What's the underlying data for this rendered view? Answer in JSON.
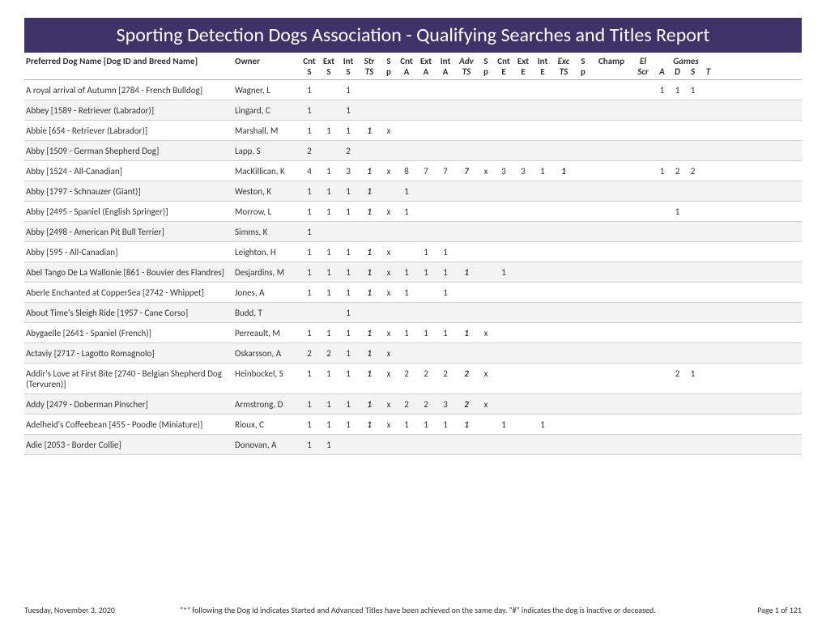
{
  "title": "Sporting Detection Dogs Association - Qualifying Searches and Titles Report",
  "header": {
    "dog": "Preferred Dog Name [Dog ID and Breed Name]",
    "owner": "Owner",
    "cols_top": [
      "Cnt",
      "Ext",
      "Int",
      "Str",
      "S",
      "Cnt",
      "Ext",
      "Int",
      "Adv",
      "S",
      "Cnt",
      "Ext",
      "Int",
      "Exc",
      "S",
      "Champ",
      "El"
    ],
    "cols_bot": [
      "S",
      "S",
      "S",
      "TS",
      "p",
      "A",
      "A",
      "A",
      "TS",
      "p",
      "E",
      "E",
      "E",
      "TS",
      "p",
      "",
      "Scr"
    ],
    "games_label": "Games",
    "games_sub": [
      "A",
      "D",
      "S",
      "T"
    ]
  },
  "rows": [
    {
      "dog": "A royal arrival of Autumn [2784 - French Bulldog]",
      "owner": "Wagner, L",
      "v": [
        "1",
        "",
        "1",
        "",
        "",
        "",
        "",
        "",
        "",
        "",
        "",
        "",
        "",
        "",
        "",
        "",
        "",
        "1",
        "1",
        "1",
        ""
      ]
    },
    {
      "dog": "Abbey [1589 - Retriever (Labrador)]",
      "owner": "Lingard, C",
      "v": [
        "1",
        "",
        "1",
        "",
        "",
        "",
        "",
        "",
        "",
        "",
        "",
        "",
        "",
        "",
        "",
        "",
        "",
        "",
        "",
        "",
        ""
      ]
    },
    {
      "dog": "Abbie [654 - Retriever (Labrador)]",
      "owner": "Marshall, M",
      "v": [
        "1",
        "1",
        "1",
        "1",
        "x",
        "",
        "",
        "",
        "",
        "",
        "",
        "",
        "",
        "",
        "",
        "",
        "",
        "",
        "",
        "",
        ""
      ]
    },
    {
      "dog": "Abby [1509 - German Shepherd Dog]",
      "owner": "Lapp, S",
      "v": [
        "2",
        "",
        "2",
        "",
        "",
        "",
        "",
        "",
        "",
        "",
        "",
        "",
        "",
        "",
        "",
        "",
        "",
        "",
        "",
        "",
        ""
      ]
    },
    {
      "dog": "Abby [1524 - All-Canadian]",
      "owner": "MacKillican, K",
      "v": [
        "4",
        "1",
        "3",
        "1",
        "x",
        "8",
        "7",
        "7",
        "7",
        "x",
        "3",
        "3",
        "1",
        "1",
        "",
        "",
        "",
        "1",
        "2",
        "2",
        ""
      ]
    },
    {
      "dog": "Abby [1797 - Schnauzer (Giant)]",
      "owner": "Weston, K",
      "v": [
        "1",
        "1",
        "1",
        "1",
        "",
        "1",
        "",
        "",
        "",
        "",
        "",
        "",
        "",
        "",
        "",
        "",
        "",
        "",
        "",
        "",
        ""
      ]
    },
    {
      "dog": "Abby [2495 - Spaniel (English Springer)]",
      "owner": "Morrow, L",
      "v": [
        "1",
        "1",
        "1",
        "1",
        "x",
        "1",
        "",
        "",
        "",
        "",
        "",
        "",
        "",
        "",
        "",
        "",
        "",
        "",
        "1",
        "",
        ""
      ]
    },
    {
      "dog": "Abby [2498 - American Pit Bull Terrier]",
      "owner": "Simms, K",
      "v": [
        "1",
        "",
        "",
        "",
        "",
        "",
        "",
        "",
        "",
        "",
        "",
        "",
        "",
        "",
        "",
        "",
        "",
        "",
        "",
        "",
        ""
      ]
    },
    {
      "dog": "Abby [595 - All-Canadian]",
      "owner": "Leighton, H",
      "v": [
        "1",
        "1",
        "1",
        "1",
        "x",
        "",
        "1",
        "1",
        "",
        "",
        "",
        "",
        "",
        "",
        "",
        "",
        "",
        "",
        "",
        "",
        ""
      ]
    },
    {
      "dog": "Abel Tango De La Wallonie [861 - Bouvier des Flandres]",
      "owner": "Desjardins, M",
      "v": [
        "1",
        "1",
        "1",
        "1",
        "x",
        "1",
        "1",
        "1",
        "1",
        "",
        "1",
        "",
        "",
        "",
        "",
        "",
        "",
        "",
        "",
        "",
        ""
      ]
    },
    {
      "dog": "Aberle Enchanted at CopperSea [2742 - Whippet]",
      "owner": "Jones, A",
      "v": [
        "1",
        "1",
        "1",
        "1",
        "x",
        "1",
        "",
        "1",
        "",
        "",
        "",
        "",
        "",
        "",
        "",
        "",
        "",
        "",
        "",
        "",
        ""
      ]
    },
    {
      "dog": "About Time's Sleigh Ride [1957 - Cane Corso]",
      "owner": "Budd, T",
      "v": [
        "",
        "",
        "1",
        "",
        "",
        "",
        "",
        "",
        "",
        "",
        "",
        "",
        "",
        "",
        "",
        "",
        "",
        "",
        "",
        "",
        ""
      ]
    },
    {
      "dog": "Abygaelle [2641 - Spaniel (French)]",
      "owner": "Perreault, M",
      "v": [
        "1",
        "1",
        "1",
        "1",
        "x",
        "1",
        "1",
        "1",
        "1",
        "x",
        "",
        "",
        "",
        "",
        "",
        "",
        "",
        "",
        "",
        "",
        ""
      ]
    },
    {
      "dog": "Actaviy [2717 - Lagotto Romagnolo]",
      "owner": "Oskarsson, A",
      "v": [
        "2",
        "2",
        "1",
        "1",
        "x",
        "",
        "",
        "",
        "",
        "",
        "",
        "",
        "",
        "",
        "",
        "",
        "",
        "",
        "",
        "",
        ""
      ]
    },
    {
      "dog": "Addir's Love at First Bite [2740 - Belgian Shepherd Dog (Tervuren)]",
      "owner": "Heinbockel, S",
      "v": [
        "1",
        "1",
        "1",
        "1",
        "x",
        "2",
        "2",
        "2",
        "2",
        "x",
        "",
        "",
        "",
        "",
        "",
        "",
        "",
        "",
        "2",
        "1",
        ""
      ]
    },
    {
      "dog": "Addy [2479 - Doberman Pinscher]",
      "owner": "Armstrong, D",
      "v": [
        "1",
        "1",
        "1",
        "1",
        "x",
        "2",
        "2",
        "3",
        "2",
        "x",
        "",
        "",
        "",
        "",
        "",
        "",
        "",
        "",
        "",
        "",
        ""
      ]
    },
    {
      "dog": "Adelheid's Coffeebean [455 - Poodle (Miniature)]",
      "owner": "Rioux, C",
      "v": [
        "1",
        "1",
        "1",
        "1",
        "x",
        "1",
        "1",
        "1",
        "1",
        "",
        "1",
        "",
        "1",
        "",
        "",
        "",
        "",
        "",
        "",
        "",
        ""
      ]
    },
    {
      "dog": "Adie [2053 - Border Collie]",
      "owner": "Donovan, A",
      "v": [
        "1",
        "1",
        "",
        "",
        "",
        "",
        "",
        "",
        "",
        "",
        "",
        "",
        "",
        "",
        "",
        "",
        "",
        "",
        "",
        "",
        ""
      ]
    }
  ],
  "footer": {
    "date": "Tuesday, November 3, 2020",
    "note": "\"*\" following the Dog Id indicates Started and Advanced Titles have been achieved on the same day. \"#\" indicates the dog is inactive or deceased.",
    "page": "Page 1 of 121"
  },
  "styling": {
    "title_bg": "#3d3366",
    "title_color": "#ffffff",
    "row_alt_bg": "#f3f3f3",
    "border_color": "#d0d0d0",
    "ts_cols": [
      3,
      8,
      13
    ],
    "sp_cols": [
      4,
      9,
      14
    ]
  }
}
